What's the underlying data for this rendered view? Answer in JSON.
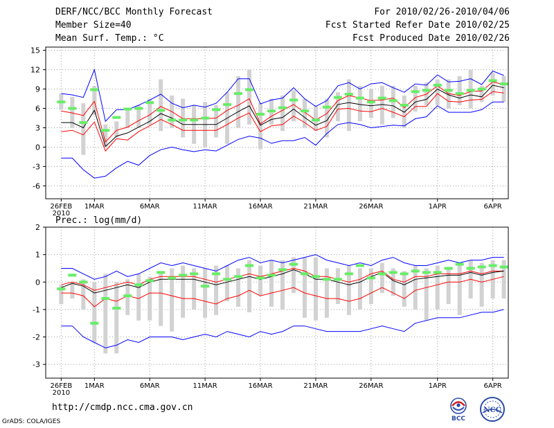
{
  "header": {
    "title": "DERF/NCC/BCC Monthly Forecast",
    "member_size": "Member Size=40",
    "variable": "Mean Surf. Temp.: °C",
    "period": "For 2010/02/26-2010/04/06",
    "refer_date": "Fcst Started Refer Date 2010/02/25",
    "produced_date": "Fcst Produced Date 2010/02/26"
  },
  "footer": {
    "url": "http://cmdp.ncc.cma.gov.cn",
    "credit": "GrADS: COLA/IGES",
    "logo_left_text": "BCC",
    "logo_right_text": "NCC"
  },
  "colors": {
    "box": "#d2d2d2",
    "blue": "#0000ff",
    "red": "#ff0000",
    "black": "#000000",
    "green": "#66ee66",
    "grid": "#9a9a9a"
  },
  "chart_data": [
    {
      "type": "line",
      "name": "temperature-panel",
      "title": "Mean Surf. Temp.: °C",
      "x_ticks": [
        {
          "day": 0,
          "label": "26FEB",
          "sub": "2010"
        },
        {
          "day": 3,
          "label": "1MAR"
        },
        {
          "day": 8,
          "label": "6MAR"
        },
        {
          "day": 13,
          "label": "11MAR"
        },
        {
          "day": 18,
          "label": "16MAR"
        },
        {
          "day": 23,
          "label": "21MAR"
        },
        {
          "day": 28,
          "label": "26MAR"
        },
        {
          "day": 34,
          "label": "1APR"
        },
        {
          "day": 39,
          "label": "6APR"
        }
      ],
      "xlim": [
        -1.4,
        40.4
      ],
      "ylim": [
        -8,
        15.5
      ],
      "y_ticks": [
        -6,
        -3,
        0,
        3,
        6,
        9,
        12,
        15
      ],
      "max": [
        8.3,
        8.1,
        7.7,
        12.0,
        4.0,
        5.8,
        5.8,
        6.5,
        7.3,
        8.2,
        6.8,
        6.1,
        6.5,
        6.2,
        6.8,
        8.5,
        10.6,
        10.6,
        6.7,
        7.3,
        7.6,
        9.2,
        7.5,
        6.3,
        7.2,
        9.5,
        10.0,
        9.0,
        9.8,
        10.0,
        9.2,
        8.5,
        9.8,
        9.6,
        11.2,
        10.1,
        10.2,
        10.6,
        9.7,
        11.8,
        11.1
      ],
      "upper": [
        5.6,
        5.3,
        4.9,
        7.1,
        0.8,
        2.6,
        3.1,
        4.1,
        5.0,
        6.3,
        5.5,
        4.4,
        4.4,
        4.4,
        4.5,
        5.7,
        6.5,
        7.5,
        3.6,
        4.8,
        5.7,
        6.6,
        5.4,
        4.2,
        5.2,
        7.2,
        8.0,
        7.6,
        7.2,
        7.3,
        7.6,
        6.1,
        7.7,
        8.2,
        9.5,
        8.3,
        8.0,
        8.6,
        8.7,
        10.1,
        9.7
      ],
      "mean": [
        3.8,
        3.8,
        3.0,
        5.7,
        0.1,
        1.7,
        2.2,
        3.1,
        4.0,
        5.2,
        4.5,
        3.5,
        3.5,
        3.5,
        3.5,
        4.5,
        5.5,
        6.4,
        3.4,
        4.3,
        4.6,
        5.9,
        4.6,
        3.4,
        4.1,
        6.6,
        6.9,
        6.6,
        6.4,
        6.6,
        6.4,
        5.4,
        7.0,
        7.4,
        9.0,
        8.1,
        7.6,
        8.1,
        7.8,
        9.6,
        9.2
      ],
      "lower": [
        2.4,
        2.6,
        1.9,
        3.9,
        -0.6,
        1.3,
        1.1,
        2.4,
        3.3,
        4.3,
        3.5,
        2.6,
        2.6,
        2.6,
        2.6,
        3.5,
        4.5,
        5.3,
        2.4,
        3.3,
        3.5,
        4.8,
        3.8,
        2.6,
        3.2,
        5.9,
        6.0,
        5.6,
        5.5,
        6.0,
        5.4,
        4.7,
        6.3,
        6.3,
        8.3,
        7.1,
        7.0,
        7.3,
        7.4,
        8.6,
        8.4
      ],
      "min": [
        -1.7,
        -1.7,
        -3.5,
        -4.8,
        -4.5,
        -3.2,
        -2.2,
        -2.8,
        -1.3,
        -0.4,
        0.0,
        -0.4,
        -0.7,
        -0.4,
        -0.6,
        0.3,
        1.2,
        1.7,
        1.4,
        0.6,
        1.0,
        1.0,
        1.5,
        0.3,
        2.1,
        3.5,
        3.8,
        3.5,
        3.0,
        3.2,
        3.4,
        3.3,
        4.4,
        4.7,
        6.4,
        5.4,
        5.4,
        5.4,
        5.8,
        7.0,
        7.0
      ],
      "box_high": [
        8.3,
        7.8,
        6.8,
        9.5,
        3.5,
        4.0,
        5.8,
        6.5,
        7.5,
        10.5,
        8.0,
        7.5,
        6.5,
        7.0,
        6.5,
        8.5,
        11.0,
        12.0,
        6.8,
        7.5,
        8.0,
        8.8,
        7.5,
        6.3,
        7.5,
        8.5,
        10.5,
        9.5,
        9.0,
        9.5,
        9.5,
        8.0,
        9.5,
        10.0,
        10.5,
        10.5,
        11.0,
        12.0,
        9.5,
        11.5,
        11.0
      ],
      "box_low": [
        5.8,
        3.0,
        -1.2,
        5.0,
        0.0,
        1.5,
        3.0,
        3.0,
        3.5,
        2.5,
        3.0,
        1.5,
        0.5,
        0.0,
        1.5,
        0.5,
        3.0,
        3.5,
        -0.3,
        3.5,
        2.5,
        4.0,
        3.0,
        2.5,
        1.5,
        4.0,
        2.5,
        4.0,
        4.5,
        3.5,
        4.5,
        3.0,
        5.5,
        6.5,
        6.5,
        6.0,
        6.5,
        6.0,
        7.0,
        8.0,
        7.0
      ],
      "observed": [
        7.0,
        6.0,
        3.8,
        8.9,
        2.6,
        4.6,
        5.9,
        6.0,
        6.9,
        5.7,
        4.2,
        4.2,
        4.2,
        4.5,
        5.8,
        6.6,
        8.3,
        8.9,
        5.1,
        5.6,
        6.1,
        7.3,
        5.6,
        4.2,
        6.2,
        7.7,
        8.2,
        7.6,
        7.0,
        7.6,
        7.2,
        6.5,
        8.6,
        8.8,
        9.6,
        8.8,
        8.3,
        8.8,
        9.0,
        10.3,
        9.8
      ]
    },
    {
      "type": "line",
      "name": "precip-panel",
      "title": "Prec.: log(mm/d)",
      "x_ticks": [
        {
          "day": 0,
          "label": "26FEB",
          "sub": "2010"
        },
        {
          "day": 3,
          "label": "1MAR"
        },
        {
          "day": 8,
          "label": "6MAR"
        },
        {
          "day": 13,
          "label": "11MAR"
        },
        {
          "day": 18,
          "label": "16MAR"
        },
        {
          "day": 23,
          "label": "21MAR"
        },
        {
          "day": 28,
          "label": "26MAR"
        },
        {
          "day": 34,
          "label": "1APR"
        },
        {
          "day": 39,
          "label": "6APR"
        }
      ],
      "xlim": [
        -1.4,
        40.4
      ],
      "ylim": [
        -3.5,
        2.0
      ],
      "y_ticks": [
        -3,
        -2,
        -1,
        0,
        1,
        2
      ],
      "max": [
        0.5,
        0.5,
        0.3,
        0.1,
        0.2,
        0.4,
        0.2,
        0.3,
        0.5,
        0.7,
        0.6,
        0.7,
        0.6,
        0.5,
        0.4,
        0.6,
        0.8,
        0.9,
        0.7,
        0.8,
        0.7,
        0.8,
        0.9,
        1.0,
        0.8,
        0.7,
        0.6,
        0.7,
        0.6,
        0.8,
        0.9,
        0.7,
        0.6,
        0.6,
        0.7,
        0.8,
        0.7,
        0.8,
        0.8,
        0.9,
        0.9
      ],
      "upper": [
        -0.1,
        0.0,
        -0.1,
        -0.3,
        -0.2,
        -0.1,
        0.0,
        -0.1,
        0.1,
        0.2,
        0.2,
        0.2,
        0.2,
        0.1,
        0.0,
        0.1,
        0.2,
        0.3,
        0.2,
        0.3,
        0.4,
        0.5,
        0.4,
        0.2,
        0.2,
        0.1,
        0.0,
        0.1,
        0.3,
        0.4,
        0.1,
        0.0,
        0.2,
        0.2,
        0.3,
        0.3,
        0.3,
        0.4,
        0.3,
        0.4,
        0.4
      ],
      "mean": [
        -0.2,
        -0.05,
        -0.15,
        -0.4,
        -0.3,
        -0.2,
        -0.1,
        -0.2,
        0.0,
        0.1,
        0.1,
        0.1,
        0.1,
        0.0,
        -0.1,
        0.0,
        0.1,
        0.2,
        0.1,
        0.2,
        0.3,
        0.45,
        0.3,
        0.1,
        0.1,
        0.0,
        -0.1,
        0.0,
        0.2,
        0.35,
        0.05,
        -0.1,
        0.1,
        0.15,
        0.2,
        0.25,
        0.25,
        0.35,
        0.25,
        0.35,
        0.4
      ],
      "lower": [
        -0.4,
        -0.4,
        -0.5,
        -0.9,
        -0.6,
        -0.7,
        -0.5,
        -0.6,
        -0.4,
        -0.4,
        -0.5,
        -0.6,
        -0.6,
        -0.7,
        -0.8,
        -0.6,
        -0.5,
        -0.3,
        -0.5,
        -0.4,
        -0.3,
        -0.2,
        -0.4,
        -0.5,
        -0.6,
        -0.6,
        -0.7,
        -0.6,
        -0.4,
        -0.2,
        -0.4,
        -0.6,
        -0.3,
        -0.2,
        -0.1,
        0.0,
        0.0,
        0.1,
        0.0,
        0.1,
        0.2
      ],
      "min": [
        -1.6,
        -1.6,
        -2.0,
        -2.2,
        -2.4,
        -2.3,
        -2.1,
        -2.2,
        -2.0,
        -2.0,
        -2.0,
        -2.1,
        -2.0,
        -1.9,
        -2.0,
        -1.8,
        -1.9,
        -2.0,
        -1.8,
        -1.9,
        -1.8,
        -1.6,
        -1.6,
        -1.7,
        -1.8,
        -1.8,
        -1.8,
        -1.8,
        -1.7,
        -1.6,
        -1.7,
        -1.8,
        -1.5,
        -1.4,
        -1.3,
        -1.3,
        -1.3,
        -1.2,
        -1.1,
        -1.1,
        -1.0
      ],
      "box_high": [
        -0.1,
        0.0,
        0.1,
        0.0,
        0.3,
        0.0,
        0.1,
        0.3,
        0.2,
        0.4,
        0.5,
        0.6,
        0.5,
        0.5,
        0.6,
        0.6,
        0.5,
        0.8,
        0.6,
        0.8,
        0.8,
        0.9,
        0.9,
        0.9,
        0.5,
        0.5,
        0.6,
        0.5,
        0.5,
        0.7,
        0.5,
        0.4,
        0.6,
        0.5,
        0.6,
        0.5,
        0.6,
        0.8,
        0.7,
        0.8,
        0.8
      ],
      "box_low": [
        -0.8,
        -0.6,
        -1.0,
        -2.2,
        -2.6,
        -2.6,
        -1.2,
        -1.4,
        -1.4,
        -1.6,
        -1.8,
        -1.3,
        -1.0,
        -1.3,
        -1.2,
        -0.7,
        -0.9,
        -1.1,
        -0.5,
        -0.9,
        -1.0,
        -0.4,
        -1.3,
        -1.4,
        -1.3,
        -0.8,
        -1.2,
        -1.0,
        -0.8,
        -0.4,
        -0.5,
        -0.9,
        -1.0,
        -1.4,
        -1.0,
        -0.8,
        -1.2,
        -0.6,
        -0.9,
        -0.6,
        -0.6
      ],
      "observed": [
        -0.25,
        0.25,
        0.0,
        -1.5,
        -0.6,
        -0.95,
        -0.5,
        -0.1,
        0.05,
        0.35,
        0.15,
        0.25,
        0.3,
        -0.15,
        0.3,
        0.1,
        0.2,
        0.6,
        0.15,
        0.25,
        0.45,
        0.65,
        0.3,
        0.2,
        0.1,
        0.1,
        0.3,
        0.6,
        0.15,
        0.3,
        0.35,
        0.3,
        0.4,
        0.35,
        0.35,
        0.5,
        0.65,
        0.5,
        0.55,
        0.6,
        0.55
      ]
    }
  ]
}
